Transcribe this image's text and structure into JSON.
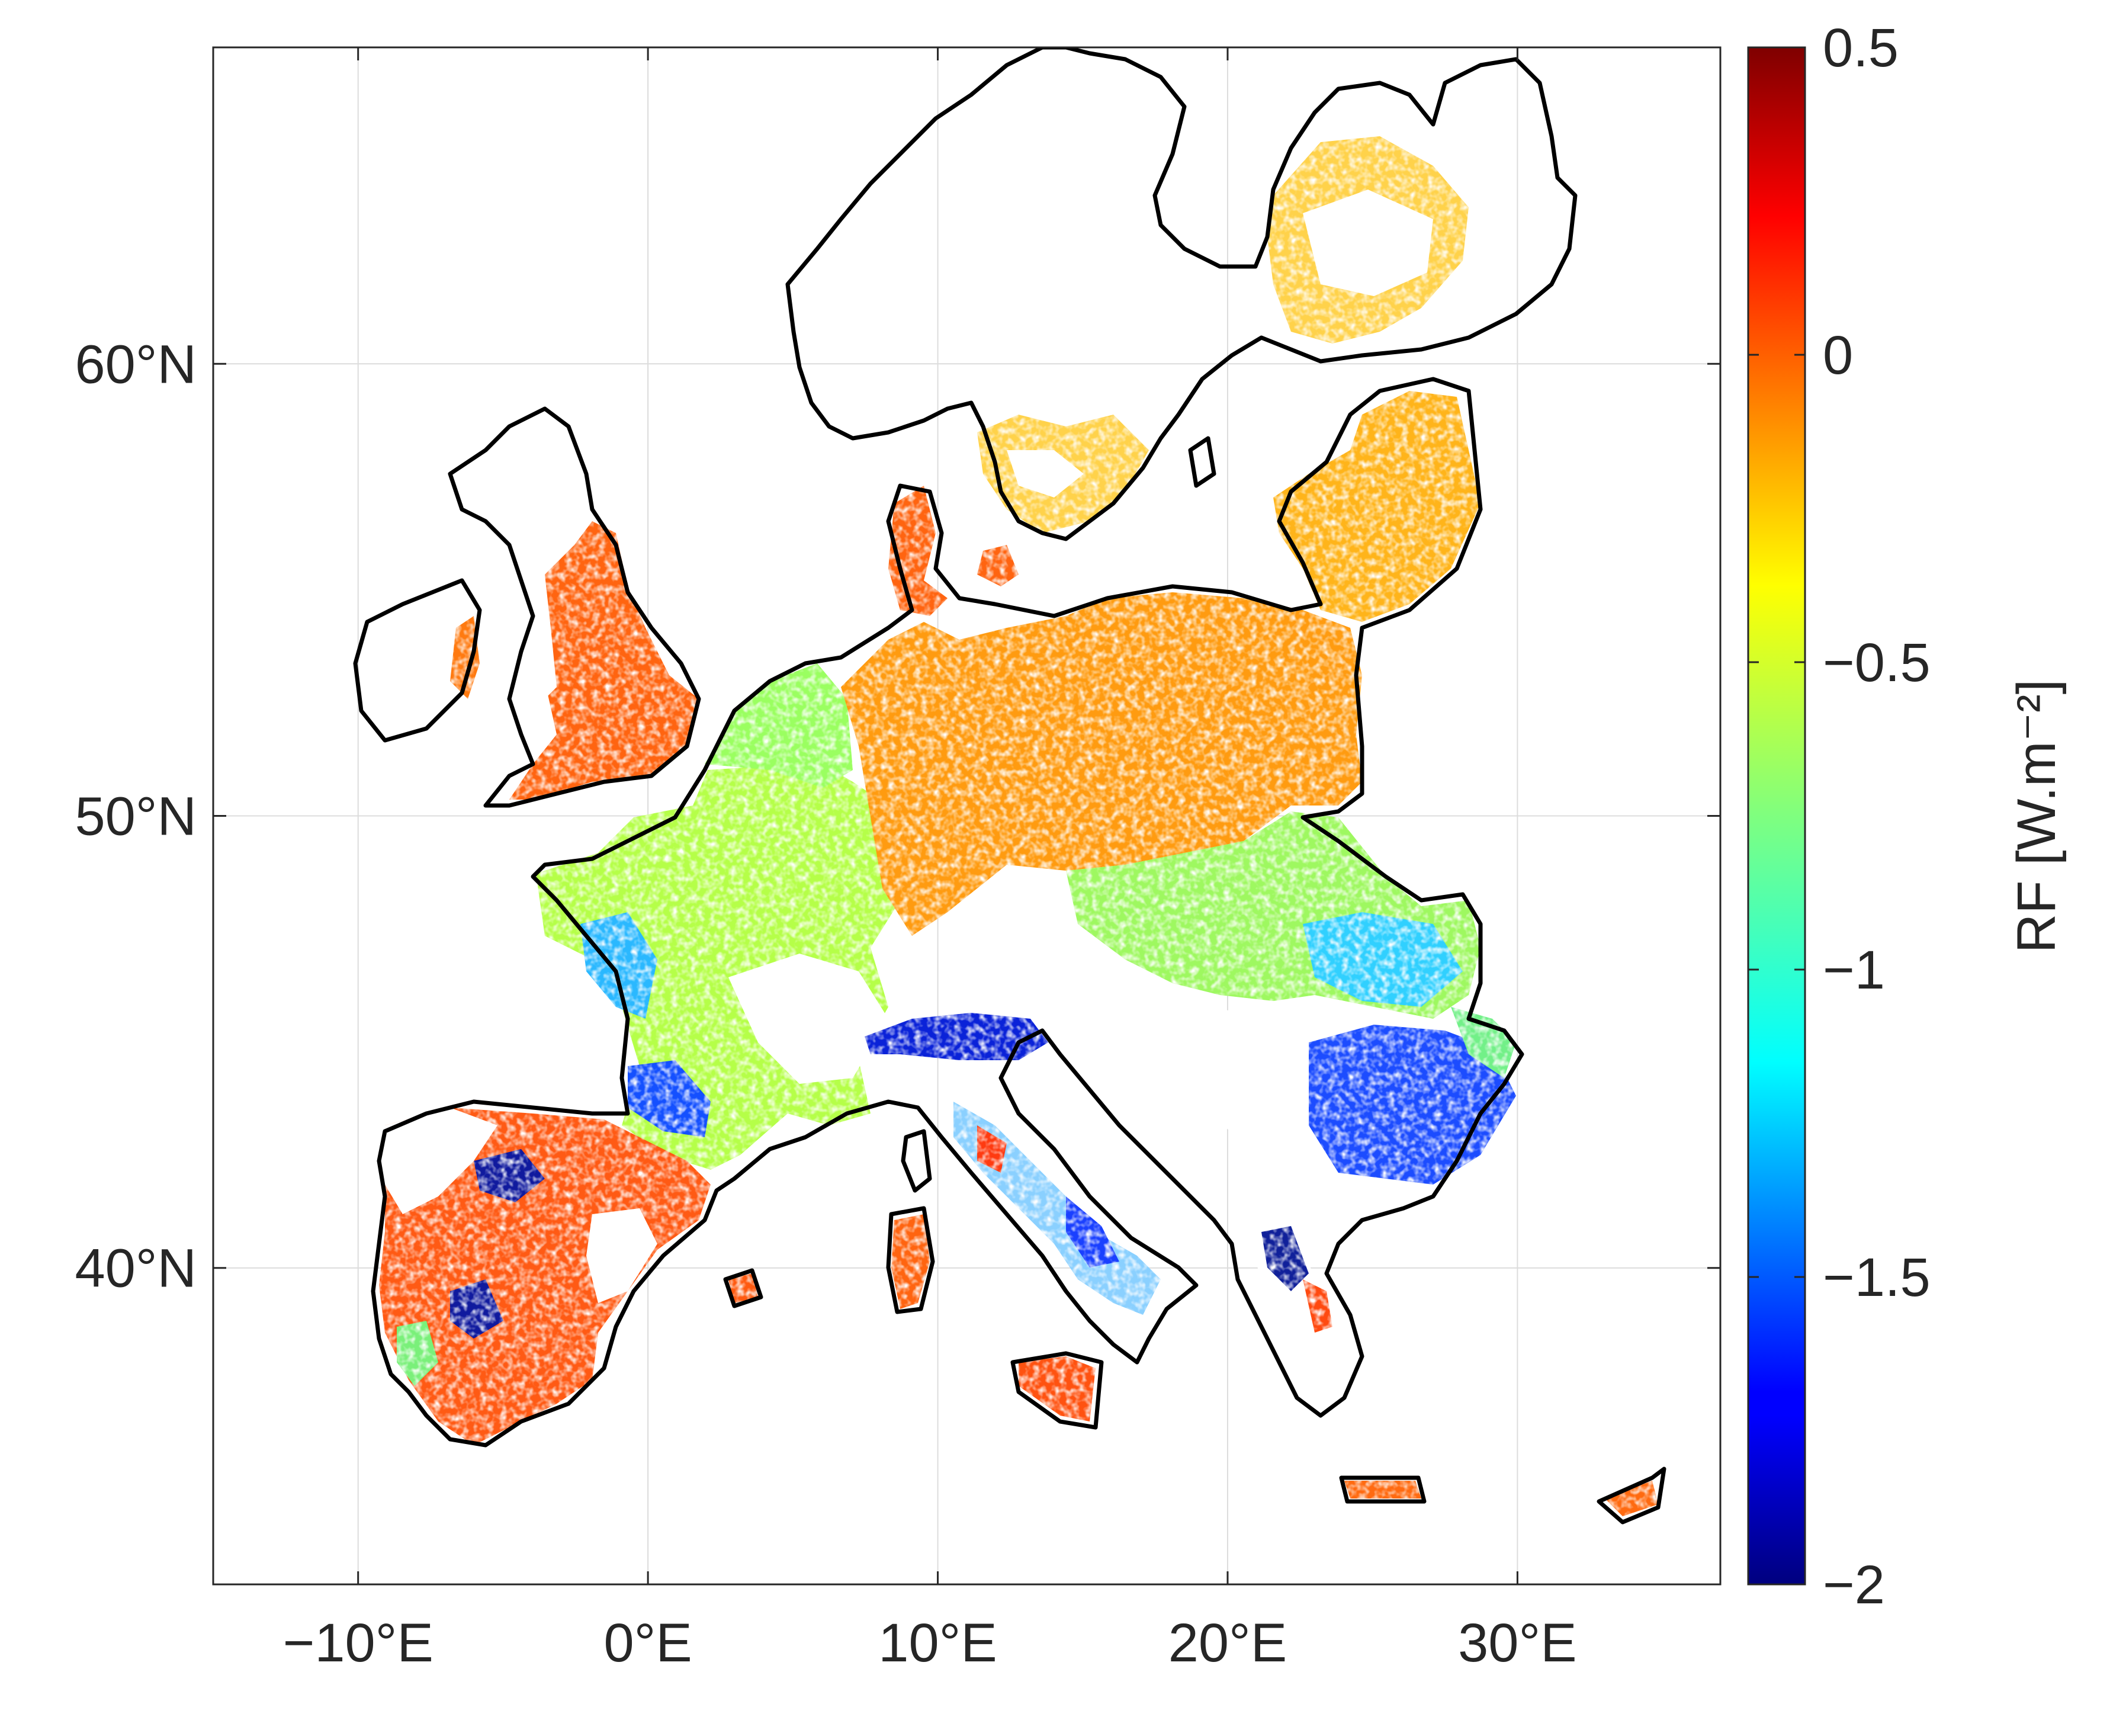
{
  "map": {
    "x_ticks": [
      {
        "value": -10,
        "label": "−10°E"
      },
      {
        "value": 0,
        "label": "0°E"
      },
      {
        "value": 10,
        "label": "10°E"
      },
      {
        "value": 20,
        "label": "20°E"
      },
      {
        "value": 30,
        "label": "30°E"
      }
    ],
    "y_ticks": [
      {
        "value": 40,
        "label": "40°N"
      },
      {
        "value": 50,
        "label": "50°N"
      },
      {
        "value": 60,
        "label": "60°N"
      }
    ],
    "xlim": [
      -15,
      37
    ],
    "ylim": [
      33,
      67
    ]
  },
  "colorbar": {
    "label": "RF [W.m⁻²]",
    "range": [
      -2,
      0.5
    ],
    "colormap": "jet",
    "ticks": [
      {
        "value": 0.5,
        "label": "0.5"
      },
      {
        "value": 0,
        "label": "0"
      },
      {
        "value": -0.5,
        "label": "−0.5"
      },
      {
        "value": -1,
        "label": "−1"
      },
      {
        "value": -1.5,
        "label": "−1.5"
      },
      {
        "value": -2,
        "label": "−2"
      }
    ]
  },
  "regions": [
    {
      "name": "UK",
      "rf": -0.05
    },
    {
      "name": "Denmark",
      "rf": -0.05
    },
    {
      "name": "Germany/Poland",
      "rf": -0.15
    },
    {
      "name": "Baltics",
      "rf": -0.25
    },
    {
      "name": "France",
      "rf": -0.65
    },
    {
      "name": "Hungary",
      "rf": -0.6
    },
    {
      "name": "Po Valley",
      "rf": -1.7
    },
    {
      "name": "Romania/Bulgaria",
      "rf": -1.65
    },
    {
      "name": "Iberia",
      "rf": 0.0
    },
    {
      "name": "Sicily",
      "rf": -0.05
    },
    {
      "name": "Finland",
      "rf": -0.2
    }
  ]
}
